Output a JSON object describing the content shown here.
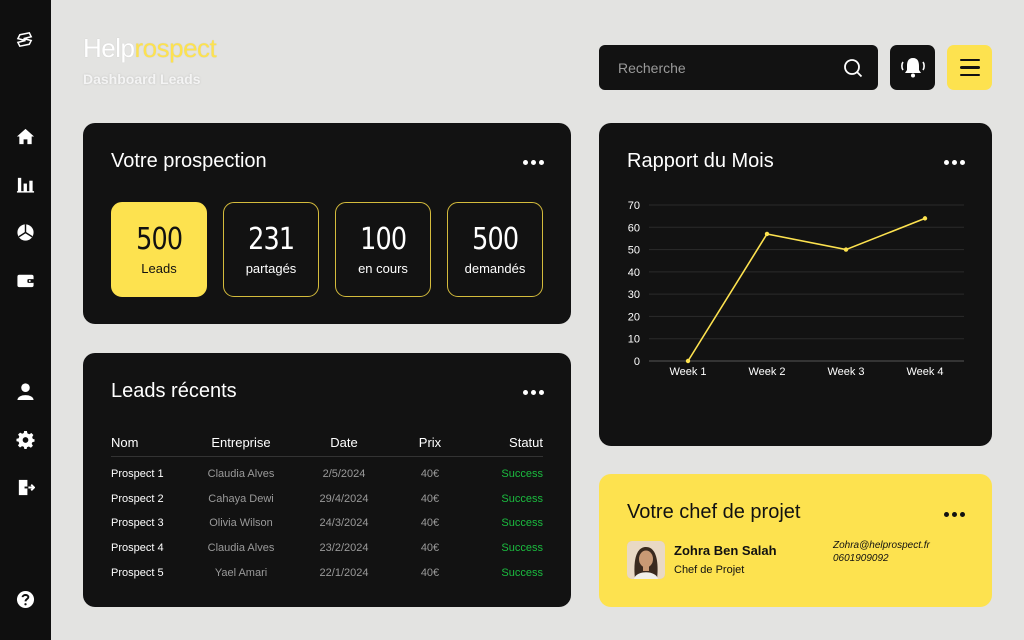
{
  "brand": {
    "part1": "Help",
    "part2": "rospect",
    "subtitle": "Dashboard Leads"
  },
  "search": {
    "placeholder": "Recherche"
  },
  "sidebar": {
    "icons": [
      "logo-icon",
      "home-icon",
      "bar-chart-icon",
      "pie-chart-icon",
      "wallet-icon",
      "user-icon",
      "gear-icon",
      "logout-icon",
      "help-icon"
    ]
  },
  "prospection": {
    "title": "Votre prospection",
    "stats": [
      {
        "value": "500",
        "label": "Leads"
      },
      {
        "value": "231",
        "label": "partagés"
      },
      {
        "value": "100",
        "label": "en cours"
      },
      {
        "value": "500",
        "label": "demandés"
      }
    ]
  },
  "leads": {
    "title": "Leads récents",
    "columns": [
      "Nom",
      "Entreprise",
      "Date",
      "Prix",
      "Statut"
    ],
    "rows": [
      [
        "Prospect 1",
        "Claudia Alves",
        "2/5/2024",
        "40€",
        "Success"
      ],
      [
        "Prospect 2",
        "Cahaya Dewi",
        "29/4/2024",
        "40€",
        "Success"
      ],
      [
        "Prospect 3",
        "Olivia Wilson",
        "24/3/2024",
        "40€",
        "Success"
      ],
      [
        "Prospect 4",
        "Claudia Alves",
        "23/2/2024",
        "40€",
        "Success"
      ],
      [
        "Prospect 5",
        "Yael Amari",
        "22/1/2024",
        "40€",
        "Success"
      ]
    ]
  },
  "rapport": {
    "title": "Rapport du Mois"
  },
  "chart_data": {
    "type": "line",
    "categories": [
      "Week 1",
      "Week 2",
      "Week 3",
      "Week 4"
    ],
    "series": [
      {
        "values": [
          0,
          57,
          50,
          64
        ]
      }
    ],
    "yticks": [
      0,
      10,
      20,
      30,
      40,
      50,
      60,
      70
    ],
    "ylim": [
      0,
      70
    ],
    "grid": true,
    "title": "",
    "xlabel": "",
    "ylabel": ""
  },
  "chef": {
    "title": "Votre chef de projet",
    "name": "Zohra Ben Salah",
    "role": "Chef de Projet",
    "email": "Zohra@helprospect.fr",
    "phone": "0601909092"
  },
  "colors": {
    "accent": "#fde24f",
    "card": "#121212",
    "success": "#1bbb3f",
    "background": "#e3e3e1"
  }
}
